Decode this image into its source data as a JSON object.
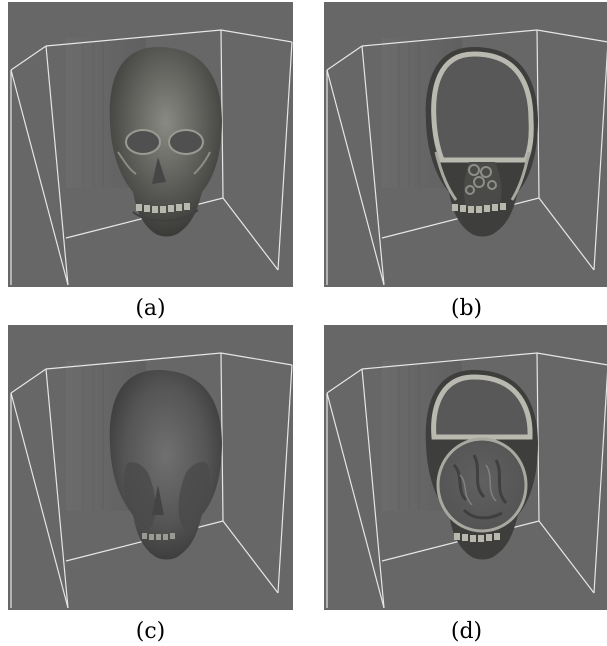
{
  "figure": {
    "background": "#676767",
    "box_color": "#e6e6e6",
    "panels": [
      {
        "id": "a",
        "caption": "(a)",
        "render": "skull-opaque"
      },
      {
        "id": "b",
        "caption": "(b)",
        "render": "skull-cut-coronal"
      },
      {
        "id": "c",
        "caption": "(c)",
        "render": "skull-soft-tissue"
      },
      {
        "id": "d",
        "caption": "(d)",
        "render": "skull-cut-interior"
      }
    ]
  }
}
